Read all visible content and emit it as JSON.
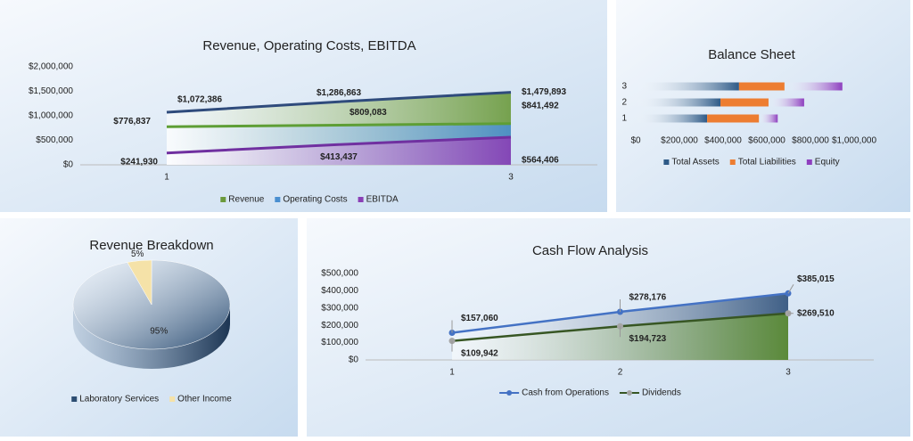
{
  "chart_data": [
    {
      "type": "area",
      "title": "Revenue, Operating Costs, EBITDA",
      "categories": [
        "1",
        null,
        "3"
      ],
      "series": [
        {
          "name": "Revenue",
          "color": "#6b9a3c",
          "line_color": "#2f4b7c",
          "values": [
            1072386,
            1286863,
            1479893
          ],
          "value_labels": [
            "$1,072,386",
            "$1,286,863",
            "$1,479,893"
          ]
        },
        {
          "name": "Operating Costs",
          "color": "#4a8fd0",
          "line_color": "#5e9e35",
          "values": [
            776837,
            809083,
            841492
          ],
          "value_labels": [
            "$776,837",
            "$809,083",
            "$841,492"
          ]
        },
        {
          "name": "EBITDA",
          "color": "#8a3fb5",
          "line_color": "#7030a0",
          "values": [
            241930,
            413437,
            564406
          ],
          "value_labels": [
            "$241,930",
            "$413,437",
            "$564,406"
          ]
        }
      ],
      "ylim": [
        0,
        2000000
      ],
      "yticks": [
        {
          "value": 0,
          "label": "$0"
        },
        {
          "value": 500000,
          "label": "$500,000"
        },
        {
          "value": 1000000,
          "label": "$1,000,000"
        },
        {
          "value": 1500000,
          "label": "$1,500,000"
        },
        {
          "value": 2000000,
          "label": "$2,000,000"
        }
      ]
    },
    {
      "type": "bar",
      "orientation": "horizontal",
      "stacked": true,
      "title": "Balance Sheet",
      "categories": [
        "1",
        "2",
        "3"
      ],
      "series": [
        {
          "name": "Total Assets",
          "color": "#2e5a87",
          "values": [
            327000,
            388000,
            473000
          ]
        },
        {
          "name": "Total Liabilities",
          "color": "#ed7d31",
          "values": [
            237000,
            220000,
            208000
          ]
        },
        {
          "name": "Equity",
          "color": "#8e3fbf",
          "values": [
            86000,
            163000,
            265000
          ]
        }
      ],
      "xlim": [
        0,
        1000000
      ],
      "xticks": [
        {
          "value": 0,
          "label": "$0"
        },
        {
          "value": 200000,
          "label": "$200,000"
        },
        {
          "value": 400000,
          "label": "$400,000"
        },
        {
          "value": 600000,
          "label": "$600,000"
        },
        {
          "value": 800000,
          "label": "$800,000"
        },
        {
          "value": 1000000,
          "label": "$1,000,000"
        }
      ]
    },
    {
      "type": "pie",
      "title": "Revenue Breakdown",
      "categories": [
        "Laboratory Services",
        "Other Income"
      ],
      "values": [
        95,
        5
      ],
      "value_labels": [
        "95%",
        "5%"
      ],
      "colors": [
        "#2c4d72",
        "#f5e2a8"
      ]
    },
    {
      "type": "line",
      "title": "Cash Flow Analysis",
      "categories": [
        "1",
        "2",
        "3"
      ],
      "series": [
        {
          "name": "Cash from Operations",
          "color": "#4472c4",
          "area_color": "#3f5f86",
          "values": [
            157060,
            278176,
            385015
          ],
          "value_labels": [
            "$157,060",
            "$278,176",
            "$385,015"
          ]
        },
        {
          "name": "Dividends",
          "color": "#375623",
          "area_color": "#5b8a3a",
          "marker_color": "#a5a5a5",
          "values": [
            109942,
            194723,
            269510
          ],
          "value_labels": [
            "$109,942",
            "$194,723",
            "$269,510"
          ]
        }
      ],
      "ylim": [
        0,
        500000
      ],
      "yticks": [
        {
          "value": 0,
          "label": "$0"
        },
        {
          "value": 100000,
          "label": "$100,000"
        },
        {
          "value": 200000,
          "label": "$200,000"
        },
        {
          "value": 300000,
          "label": "$300,000"
        },
        {
          "value": 400000,
          "label": "$400,000"
        },
        {
          "value": 500000,
          "label": "$500,000"
        }
      ]
    }
  ]
}
